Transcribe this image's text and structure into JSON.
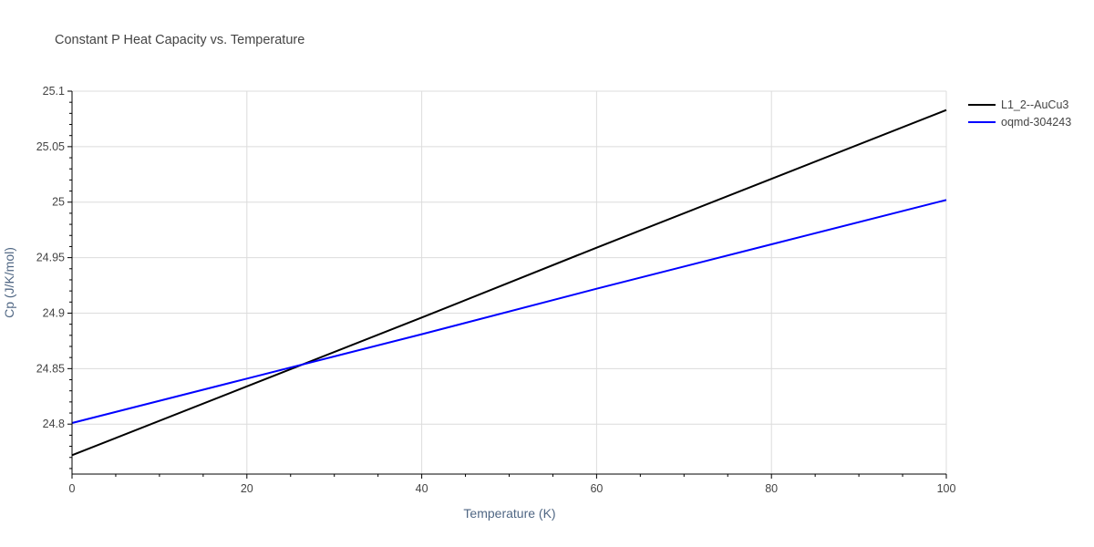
{
  "chart_data": {
    "type": "line",
    "title": "Constant P Heat Capacity vs. Temperature",
    "xlabel": "Temperature (K)",
    "ylabel": "Cp (J/K/mol)",
    "xlim": [
      0,
      100
    ],
    "ylim": [
      24.755,
      25.1
    ],
    "x_ticks": [
      0,
      20,
      40,
      60,
      80,
      100
    ],
    "y_ticks": [
      24.8,
      24.85,
      24.9,
      24.95,
      25,
      25.05,
      25.1
    ],
    "x_tick_labels": [
      "0",
      "20",
      "40",
      "60",
      "80",
      "100"
    ],
    "y_tick_labels": [
      "24.8",
      "24.85",
      "24.9",
      "24.95",
      "25",
      "25.05",
      "25.1"
    ],
    "grid": true,
    "legend_position": "top-right",
    "series": [
      {
        "name": "L1_2--AuCu3",
        "color": "#000000",
        "x": [
          0,
          20,
          40,
          60,
          80,
          100
        ],
        "y": [
          24.772,
          24.834,
          24.896,
          24.959,
          25.021,
          25.083
        ]
      },
      {
        "name": "oqmd-304243",
        "color": "#0000ff",
        "x": [
          0,
          20,
          40,
          60,
          80,
          100
        ],
        "y": [
          24.801,
          24.841,
          24.881,
          24.922,
          24.962,
          25.002
        ]
      }
    ]
  }
}
